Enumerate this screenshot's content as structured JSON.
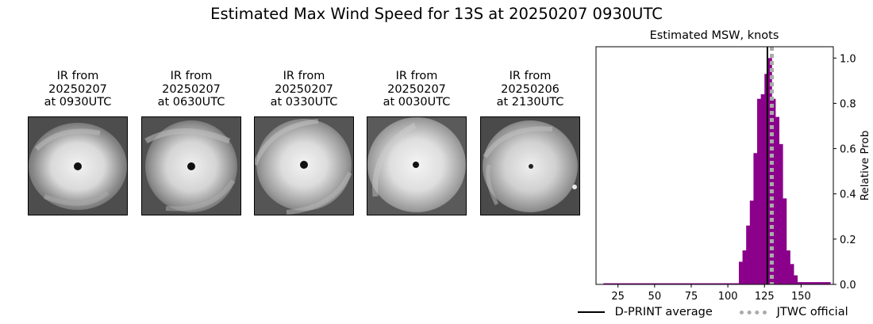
{
  "figure": {
    "title": "Estimated Max Wind Speed for 13S at 20250207 0930UTC"
  },
  "ir_panels": [
    {
      "caption": "IR from\n20250207\nat 0930UTC"
    },
    {
      "caption": "IR from\n20250207\nat 0630UTC"
    },
    {
      "caption": "IR from\n20250207\nat 0330UTC"
    },
    {
      "caption": "IR from\n20250207\nat 0030UTC"
    },
    {
      "caption": "IR from\n20250206\nat 2130UTC"
    }
  ],
  "chart_data": {
    "type": "bar",
    "title": "Estimated MSW, knots",
    "xlabel": "",
    "ylabel": "Relative Prob",
    "xlim": [
      10,
      172
    ],
    "ylim": [
      0,
      1.05
    ],
    "xticks": [
      25,
      50,
      75,
      100,
      125,
      150
    ],
    "yticks": [
      0.0,
      0.2,
      0.4,
      0.6,
      0.8,
      1.0
    ],
    "y_axis_side": "right",
    "bar_color": "#8b008b",
    "bin_width": 2.5,
    "bins": [
      {
        "x": 15,
        "value": 0.005
      },
      {
        "x": 17.5,
        "value": 0.005
      },
      {
        "x": 20,
        "value": 0.005
      },
      {
        "x": 22.5,
        "value": 0.005
      },
      {
        "x": 25,
        "value": 0.005
      },
      {
        "x": 27.5,
        "value": 0.005
      },
      {
        "x": 30,
        "value": 0.005
      },
      {
        "x": 32.5,
        "value": 0.005
      },
      {
        "x": 35,
        "value": 0.005
      },
      {
        "x": 37.5,
        "value": 0.005
      },
      {
        "x": 40,
        "value": 0.005
      },
      {
        "x": 42.5,
        "value": 0.005
      },
      {
        "x": 45,
        "value": 0.005
      },
      {
        "x": 47.5,
        "value": 0.005
      },
      {
        "x": 50,
        "value": 0.005
      },
      {
        "x": 52.5,
        "value": 0.005
      },
      {
        "x": 55,
        "value": 0.005
      },
      {
        "x": 57.5,
        "value": 0.005
      },
      {
        "x": 60,
        "value": 0.005
      },
      {
        "x": 62.5,
        "value": 0.005
      },
      {
        "x": 65,
        "value": 0.005
      },
      {
        "x": 67.5,
        "value": 0.005
      },
      {
        "x": 70,
        "value": 0.005
      },
      {
        "x": 72.5,
        "value": 0.005
      },
      {
        "x": 75,
        "value": 0.005
      },
      {
        "x": 77.5,
        "value": 0.005
      },
      {
        "x": 80,
        "value": 0.005
      },
      {
        "x": 82.5,
        "value": 0.005
      },
      {
        "x": 85,
        "value": 0.005
      },
      {
        "x": 87.5,
        "value": 0.005
      },
      {
        "x": 90,
        "value": 0.005
      },
      {
        "x": 92.5,
        "value": 0.005
      },
      {
        "x": 95,
        "value": 0.005
      },
      {
        "x": 97.5,
        "value": 0.005
      },
      {
        "x": 100,
        "value": 0.005
      },
      {
        "x": 102.5,
        "value": 0.005
      },
      {
        "x": 105,
        "value": 0.005
      },
      {
        "x": 107.5,
        "value": 0.1
      },
      {
        "x": 110,
        "value": 0.15
      },
      {
        "x": 112.5,
        "value": 0.26
      },
      {
        "x": 115,
        "value": 0.37
      },
      {
        "x": 117.5,
        "value": 0.58
      },
      {
        "x": 120,
        "value": 0.82
      },
      {
        "x": 122.5,
        "value": 0.84
      },
      {
        "x": 125,
        "value": 0.93
      },
      {
        "x": 127.5,
        "value": 1.0
      },
      {
        "x": 130,
        "value": 0.82
      },
      {
        "x": 132.5,
        "value": 0.74
      },
      {
        "x": 135,
        "value": 0.62
      },
      {
        "x": 137.5,
        "value": 0.38
      },
      {
        "x": 140,
        "value": 0.15
      },
      {
        "x": 142.5,
        "value": 0.09
      },
      {
        "x": 145,
        "value": 0.04
      },
      {
        "x": 147.5,
        "value": 0.01
      },
      {
        "x": 150,
        "value": 0.01
      },
      {
        "x": 152.5,
        "value": 0.01
      },
      {
        "x": 155,
        "value": 0.01
      },
      {
        "x": 157.5,
        "value": 0.01
      },
      {
        "x": 160,
        "value": 0.01
      },
      {
        "x": 162.5,
        "value": 0.01
      },
      {
        "x": 165,
        "value": 0.01
      },
      {
        "x": 167.5,
        "value": 0.01
      }
    ],
    "reference_lines": [
      {
        "name": "D-PRINT average",
        "x": 127,
        "color": "#000000",
        "style": "solid"
      },
      {
        "name": "JTWC official",
        "x": 130,
        "color": "#aaaaaa",
        "style": "dotted"
      }
    ],
    "legend": "bottom"
  }
}
